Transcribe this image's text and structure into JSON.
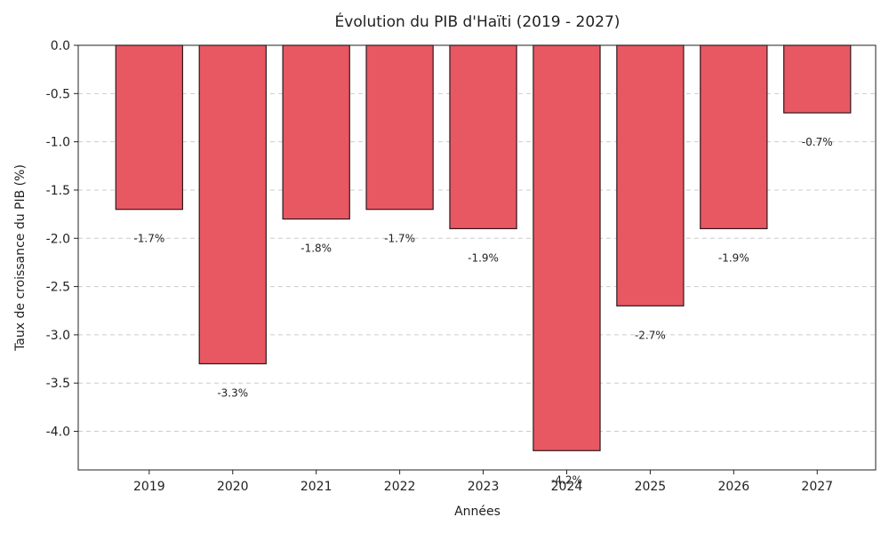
{
  "chart_data": {
    "type": "bar",
    "title": "Évolution du PIB d'Haïti (2019 - 2027)",
    "xlabel": "Années",
    "ylabel": "Taux de croissance du PIB (%)",
    "categories": [
      "2019",
      "2020",
      "2021",
      "2022",
      "2023",
      "2024",
      "2025",
      "2026",
      "2027"
    ],
    "values": [
      -1.7,
      -3.3,
      -1.8,
      -1.7,
      -1.9,
      -4.2,
      -2.7,
      -1.9,
      -0.7
    ],
    "data_labels": [
      "-1.7%",
      "-3.3%",
      "-1.8%",
      "-1.7%",
      "-1.9%",
      "-4.2%",
      "-2.7%",
      "-1.9%",
      "-0.7%"
    ],
    "ylim": [
      -4.4,
      0.0
    ],
    "yticks": [
      "0.0",
      "-0.5",
      "-1.0",
      "-1.5",
      "-2.0",
      "-2.5",
      "-3.0",
      "-3.5",
      "-4.0"
    ],
    "ytick_values": [
      0.0,
      -0.5,
      -1.0,
      -1.5,
      -2.0,
      -2.5,
      -3.0,
      -3.5,
      -4.0
    ],
    "grid": true,
    "bar_color": "#e85862",
    "bar_edge_color": "#2b1a1e",
    "grid_color": "#cccccc"
  }
}
